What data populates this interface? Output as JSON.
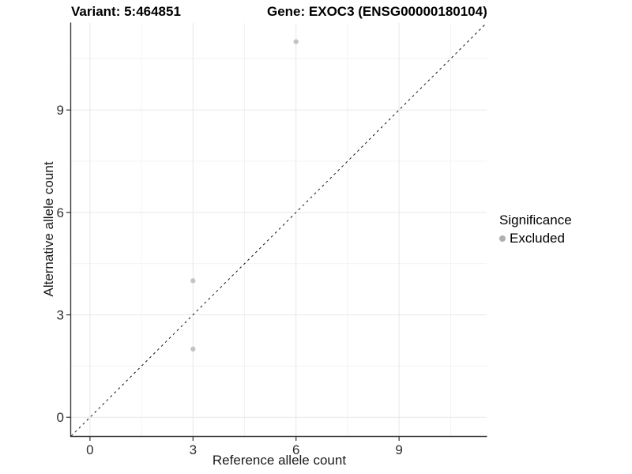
{
  "title": {
    "left": "Variant: 5:464851",
    "right": "Gene: EXOC3 (ENSG00000180104)"
  },
  "chart_data": {
    "type": "scatter",
    "xlabel": "Reference allele count",
    "ylabel": "Alternative allele count",
    "xlim": [
      -0.55,
      11.55
    ],
    "ylim": [
      -0.55,
      11.55
    ],
    "x_major_ticks": [
      0,
      3,
      6,
      9
    ],
    "y_major_ticks": [
      0,
      3,
      6,
      9
    ],
    "x_minor_gridlines": [
      1.5,
      4.5,
      7.5,
      10.5
    ],
    "y_minor_gridlines": [
      1.5,
      4.5,
      7.5,
      10.5
    ],
    "grid": true,
    "series": [
      {
        "name": "Excluded",
        "color": "#c4c4c4",
        "points": [
          {
            "x": 3,
            "y": 2
          },
          {
            "x": 3,
            "y": 4
          },
          {
            "x": 6,
            "y": 11
          }
        ]
      }
    ],
    "reference_line": {
      "type": "identity",
      "equation": "y = x",
      "style": "dashed",
      "color": "#141414"
    },
    "legend": {
      "title": "Significance",
      "position": "right",
      "items": [
        {
          "label": "Excluded",
          "color": "#b0b0b0"
        }
      ]
    }
  },
  "colors": {
    "background": "#ffffff",
    "grid_major": "#e7e7e7",
    "grid_minor": "#f3f3f3",
    "axis_line": "#3c3c3c",
    "tick_mark": "#333333",
    "tick_label": "#2e2e2e",
    "point": "#c4c4c4"
  }
}
